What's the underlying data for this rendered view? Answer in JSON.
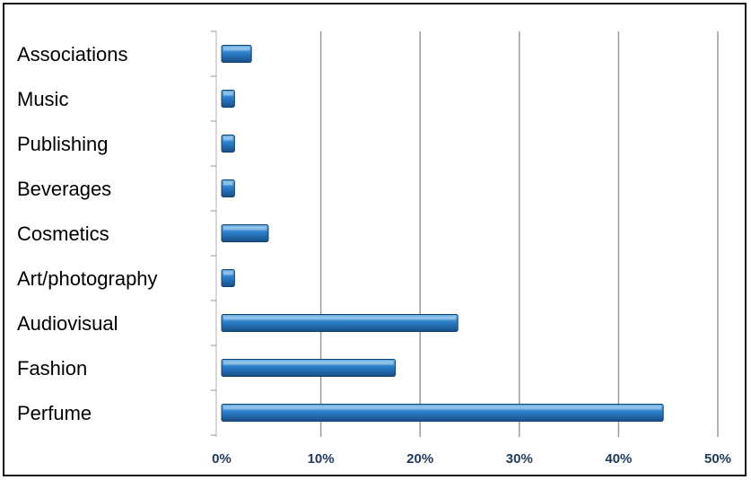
{
  "chart_data": {
    "type": "bar",
    "orientation": "horizontal",
    "categories": [
      "Associations",
      "Music",
      "Publishing",
      "Beverages",
      "Cosmetics",
      "Art/photography",
      "Audiovisual",
      "Fashion",
      "Perfume"
    ],
    "values": [
      3,
      1.3,
      1.3,
      1.3,
      4.7,
      1.3,
      23.8,
      17.5,
      44.5
    ],
    "x_ticks": [
      "0%",
      "10%",
      "20%",
      "30%",
      "40%",
      "50%"
    ],
    "xlim": [
      0,
      50
    ],
    "grid": true,
    "legend": "none",
    "title": "",
    "xlabel": "",
    "ylabel": ""
  },
  "colors": {
    "bar_top": "#6fb6ea",
    "bar_mid": "#2b7fc9",
    "bar_bottom": "#174f86",
    "bar_stroke": "#12406e",
    "gridline": "#9a9a9a"
  }
}
